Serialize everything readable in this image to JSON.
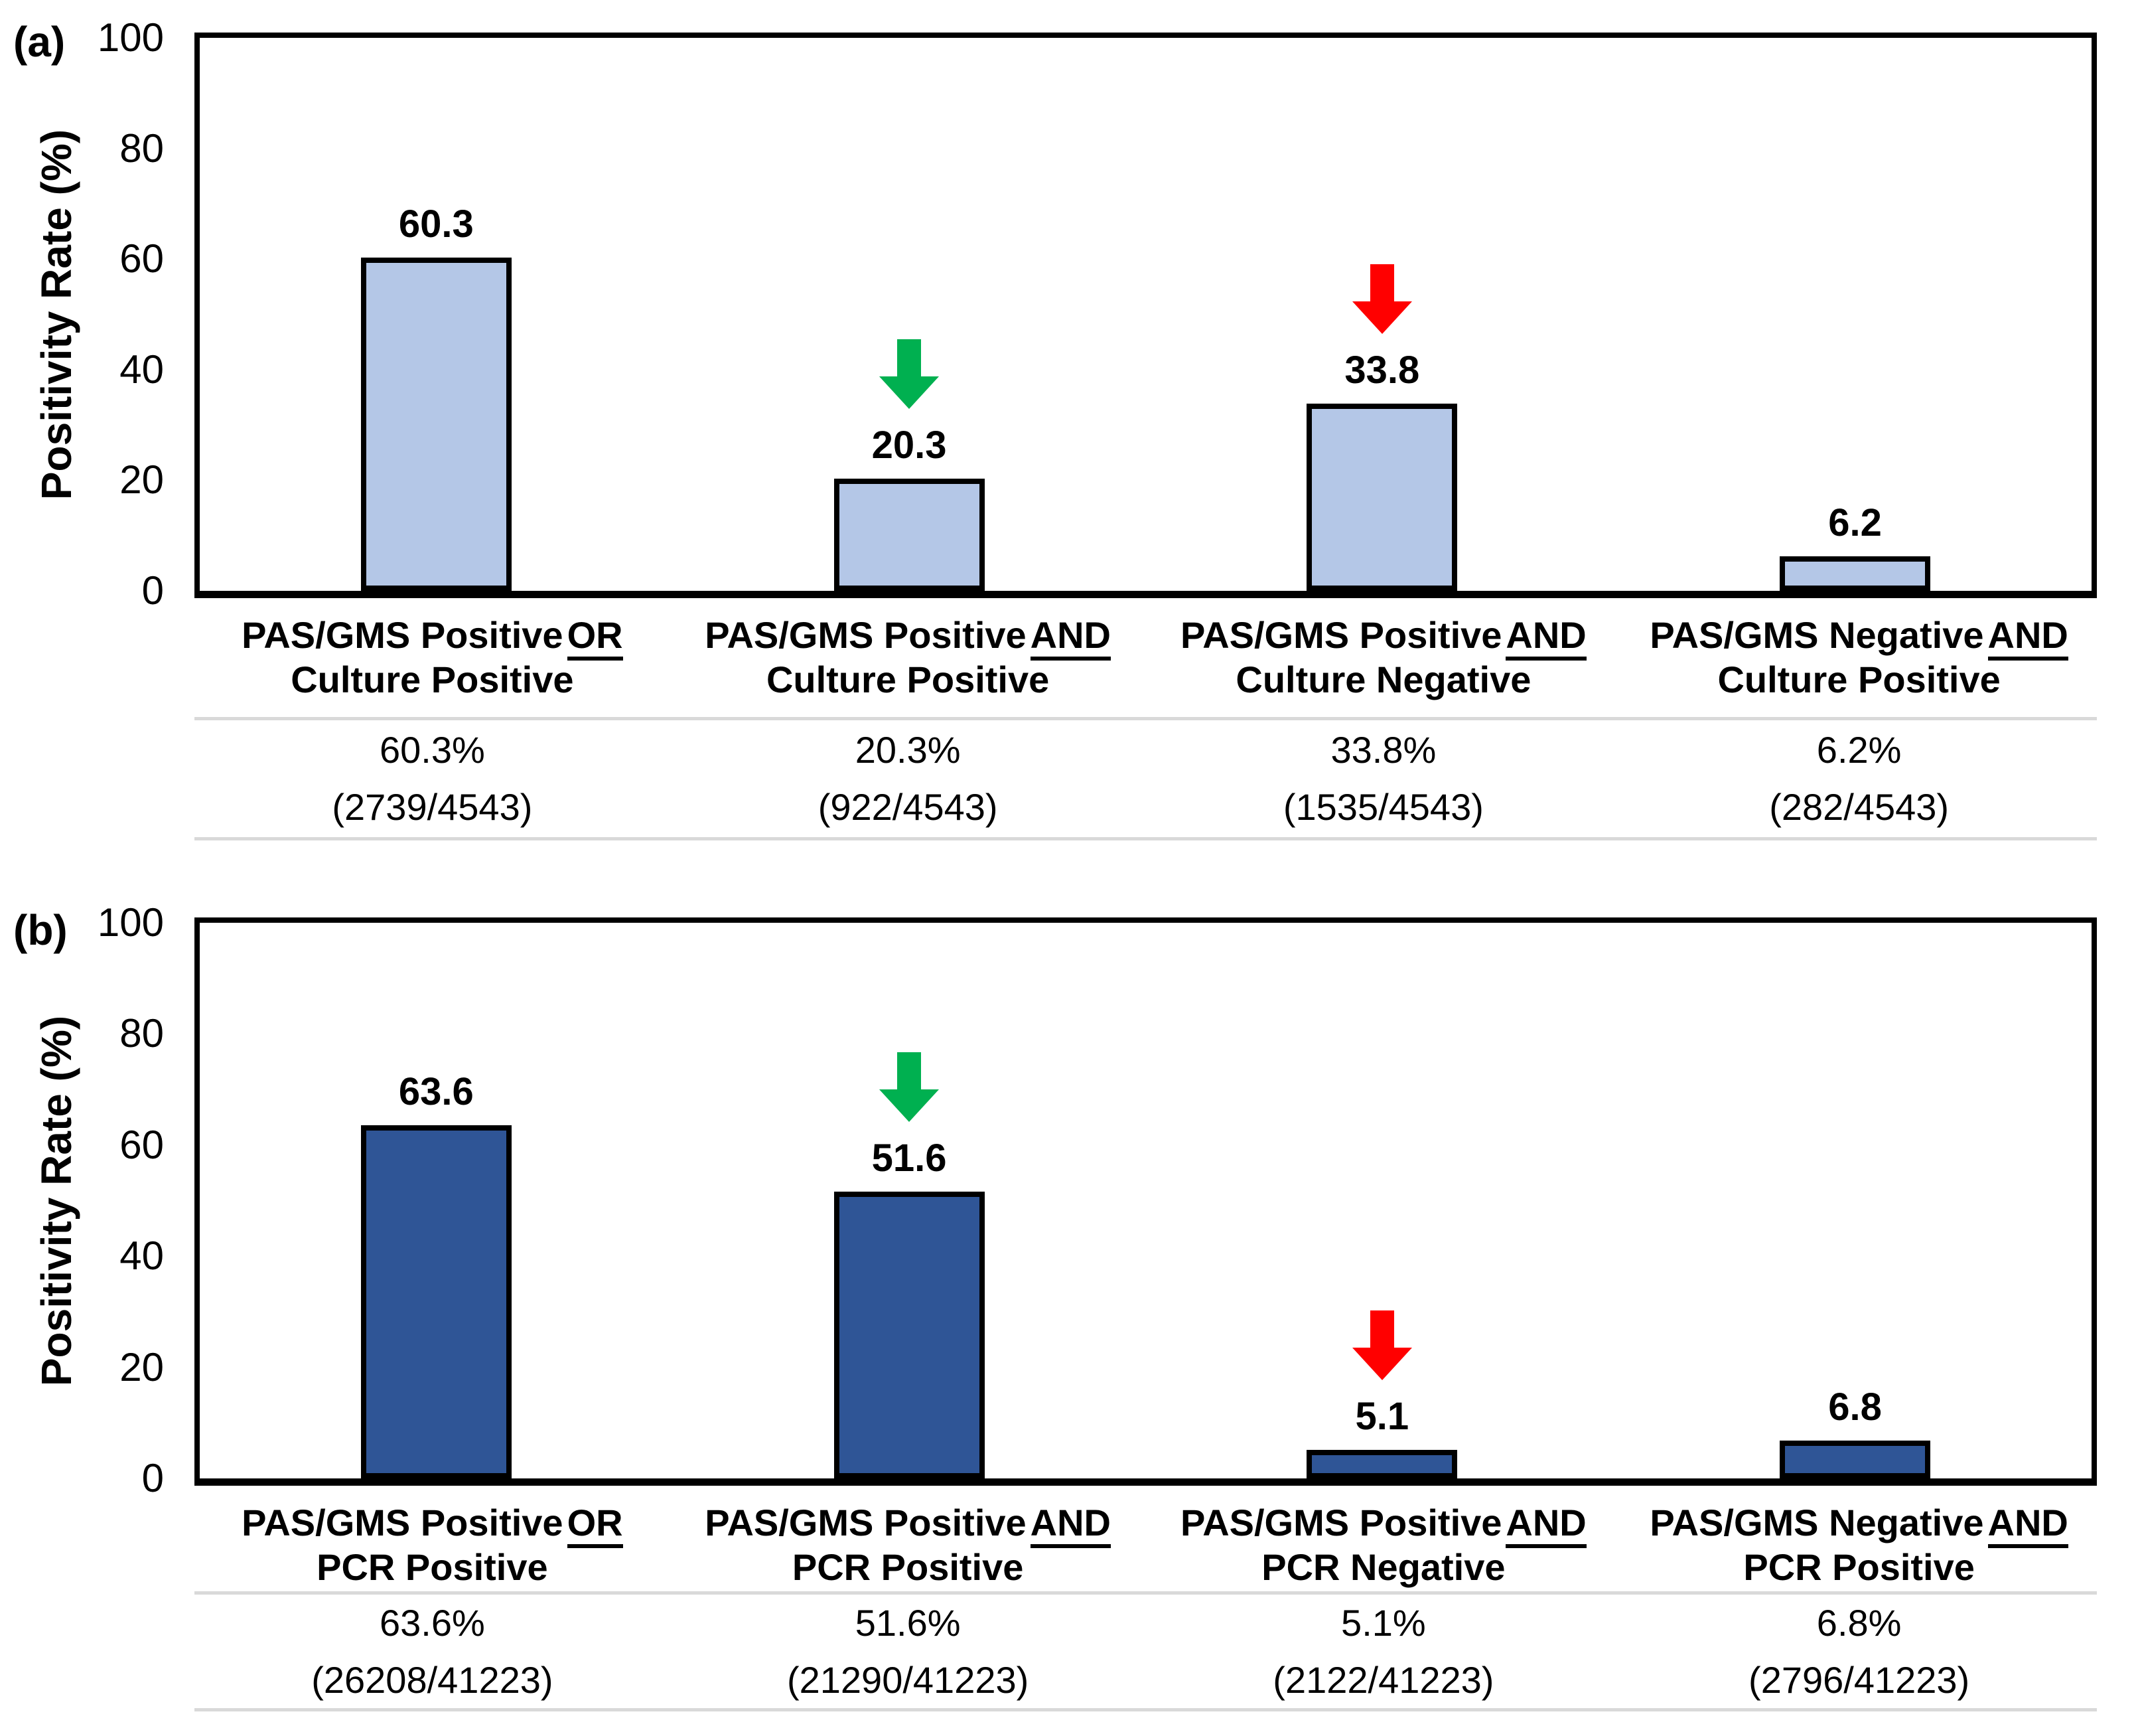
{
  "colors": {
    "panel_a_bar_fill": "#B4C7E7",
    "panel_b_bar_fill": "#2F5596",
    "bar_border": "#000000",
    "axis": "#000000",
    "green_arrow": "#00B050",
    "red_arrow": "#FF0000",
    "table_line": "#D9D9D9",
    "text": "#000000",
    "background": "#FFFFFF"
  },
  "chart_data": [
    {
      "type": "bar",
      "panel_label": "(a)",
      "title": "",
      "xlabel": "",
      "ylabel": "Positivity Rate (%)",
      "ylim": [
        0,
        100
      ],
      "yticks": [
        0,
        20,
        40,
        60,
        80,
        100
      ],
      "grid": false,
      "legend": null,
      "bar_color": "#B4C7E7",
      "categories": [
        "PAS/GMS Positive OR Culture Positive",
        "PAS/GMS Positive AND Culture Positive",
        "PAS/GMS Positive AND Culture Negative",
        "PAS/GMS Negative AND Culture Positive"
      ],
      "categories_rich": [
        {
          "line1": "PAS/GMS Positive",
          "conjunction": "OR",
          "line2": "Culture Positive"
        },
        {
          "line1": "PAS/GMS Positive",
          "conjunction": "AND",
          "line2": "Culture Positive"
        },
        {
          "line1": "PAS/GMS Positive",
          "conjunction": "AND",
          "line2": "Culture Negative"
        },
        {
          "line1": "PAS/GMS Negative",
          "conjunction": "AND",
          "line2": "Culture Positive"
        }
      ],
      "values": [
        60.3,
        20.3,
        33.8,
        6.2
      ],
      "bar_labels": [
        "60.3",
        "20.3",
        "33.8",
        "6.2"
      ],
      "annotations": [
        {
          "category_index": 1,
          "icon": "down-arrow",
          "color": "#00B050",
          "meaning": "green-down-arrow"
        },
        {
          "category_index": 2,
          "icon": "down-arrow",
          "color": "#FF0000",
          "meaning": "red-down-arrow"
        }
      ],
      "table_row": [
        {
          "percent": "60.3%",
          "fraction": "(2739/4543)"
        },
        {
          "percent": "20.3%",
          "fraction": "(922/4543)"
        },
        {
          "percent": "33.8%",
          "fraction": "(1535/4543)"
        },
        {
          "percent": "6.2%",
          "fraction": "(282/4543)"
        }
      ]
    },
    {
      "type": "bar",
      "panel_label": "(b)",
      "title": "",
      "xlabel": "",
      "ylabel": "Positivity Rate (%)",
      "ylim": [
        0,
        100
      ],
      "yticks": [
        0,
        20,
        40,
        60,
        80,
        100
      ],
      "grid": false,
      "legend": null,
      "bar_color": "#2F5596",
      "categories": [
        "PAS/GMS Positive OR PCR Positive",
        "PAS/GMS Positive AND PCR Positive",
        "PAS/GMS Positive AND PCR Negative",
        "PAS/GMS Negative AND PCR Positive"
      ],
      "categories_rich": [
        {
          "line1": "PAS/GMS Positive",
          "conjunction": "OR",
          "line2": "PCR Positive"
        },
        {
          "line1": "PAS/GMS Positive",
          "conjunction": "AND",
          "line2": "PCR Positive"
        },
        {
          "line1": "PAS/GMS Positive",
          "conjunction": "AND",
          "line2": "PCR Negative"
        },
        {
          "line1": "PAS/GMS Negative",
          "conjunction": "AND",
          "line2": "PCR Positive"
        }
      ],
      "values": [
        63.6,
        51.6,
        5.1,
        6.8
      ],
      "bar_labels": [
        "63.6",
        "51.6",
        "5.1",
        "6.8"
      ],
      "annotations": [
        {
          "category_index": 1,
          "icon": "down-arrow",
          "color": "#00B050",
          "meaning": "green-down-arrow"
        },
        {
          "category_index": 2,
          "icon": "down-arrow",
          "color": "#FF0000",
          "meaning": "red-down-arrow"
        }
      ],
      "table_row": [
        {
          "percent": "63.6%",
          "fraction": "(26208/41223)"
        },
        {
          "percent": "51.6%",
          "fraction": "(21290/41223)"
        },
        {
          "percent": "5.1%",
          "fraction": "(2122/41223)"
        },
        {
          "percent": "6.8%",
          "fraction": "(2796/41223)"
        }
      ]
    }
  ]
}
